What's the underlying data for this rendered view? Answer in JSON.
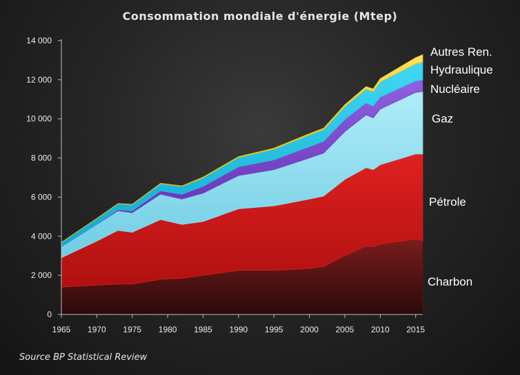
{
  "chart_data": {
    "type": "area",
    "stacked": true,
    "title": "Consommation mondiale d'énergie (Mtep)",
    "source": "Source BP Statistical Review",
    "xlim": [
      1965,
      2016
    ],
    "ylim": [
      0,
      14000
    ],
    "x_ticks": [
      1965,
      1970,
      1975,
      1980,
      1985,
      1990,
      1995,
      2000,
      2005,
      2010,
      2015
    ],
    "x_tick_labels": [
      "1965",
      "1970",
      "1975",
      "1980",
      "1985",
      "1990",
      "1995",
      "2000",
      "2005",
      "2010",
      "2015"
    ],
    "y_ticks": [
      0,
      2000,
      4000,
      6000,
      8000,
      10000,
      12000,
      14000
    ],
    "y_tick_labels": [
      "0",
      "2 000",
      "4 000",
      "6 000",
      "8 000",
      "10 000",
      "12 000",
      "14 000"
    ],
    "x": [
      1965,
      1970,
      1973,
      1975,
      1979,
      1982,
      1985,
      1990,
      1995,
      2000,
      2002,
      2005,
      2008,
      2009,
      2010,
      2015,
      2016
    ],
    "series": [
      {
        "name": "Charbon",
        "color": "#5a1414",
        "values": [
          1400,
          1500,
          1550,
          1550,
          1800,
          1850,
          2000,
          2250,
          2250,
          2350,
          2450,
          3000,
          3500,
          3450,
          3600,
          3850,
          3750
        ]
      },
      {
        "name": "Pétrole",
        "color": "#d81c1c",
        "values": [
          1500,
          2250,
          2750,
          2650,
          3050,
          2750,
          2750,
          3150,
          3300,
          3550,
          3600,
          3900,
          4000,
          3950,
          4050,
          4350,
          4450
        ]
      },
      {
        "name": "Gaz",
        "color": "#8fd8ea",
        "values": [
          550,
          850,
          1000,
          1000,
          1300,
          1300,
          1450,
          1700,
          1850,
          2100,
          2200,
          2450,
          2700,
          2650,
          2850,
          3150,
          3200
        ]
      },
      {
        "name": "Nucléaire",
        "color": "#7040c8",
        "values": [
          10,
          20,
          60,
          100,
          170,
          250,
          350,
          450,
          500,
          580,
          600,
          620,
          610,
          600,
          610,
          580,
          590
        ]
      },
      {
        "name": "Hydraulique",
        "color": "#22c2e2",
        "values": [
          220,
          280,
          300,
          320,
          370,
          400,
          440,
          480,
          550,
          600,
          600,
          660,
          720,
          740,
          780,
          880,
          910
        ]
      },
      {
        "name": "Autres Ren.",
        "color": "#f2c410",
        "values": [
          5,
          8,
          10,
          12,
          15,
          20,
          30,
          40,
          50,
          60,
          70,
          90,
          120,
          140,
          170,
          320,
          380
        ]
      }
    ]
  }
}
